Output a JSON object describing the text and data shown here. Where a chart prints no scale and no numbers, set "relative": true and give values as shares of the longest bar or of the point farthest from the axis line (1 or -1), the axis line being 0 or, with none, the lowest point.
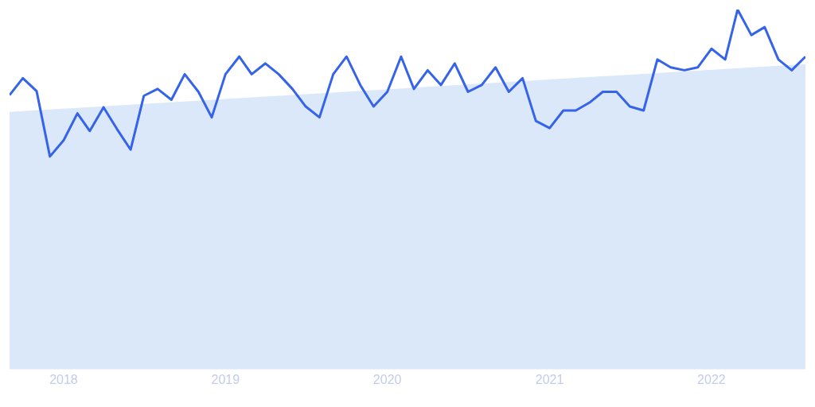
{
  "chart_data": {
    "type": "line",
    "relative": true,
    "x": [
      "2017-09",
      "2017-10",
      "2017-11",
      "2017-12",
      "2018-01",
      "2018-02",
      "2018-03",
      "2018-04",
      "2018-05",
      "2018-06",
      "2018-07",
      "2018-08",
      "2018-09",
      "2018-10",
      "2018-11",
      "2018-12",
      "2019-01",
      "2019-02",
      "2019-03",
      "2019-04",
      "2019-05",
      "2019-06",
      "2019-07",
      "2019-08",
      "2019-09",
      "2019-10",
      "2019-11",
      "2019-12",
      "2020-01",
      "2020-02",
      "2020-03",
      "2020-04",
      "2020-05",
      "2020-06",
      "2020-07",
      "2020-08",
      "2020-09",
      "2020-10",
      "2020-11",
      "2020-12",
      "2021-01",
      "2021-02",
      "2021-03",
      "2021-04",
      "2021-05",
      "2021-06",
      "2021-07",
      "2021-08",
      "2021-09",
      "2021-10",
      "2021-11",
      "2021-12",
      "2022-01",
      "2022-02",
      "2022-03",
      "2022-04",
      "2022-05",
      "2022-06",
      "2022-07",
      "2022-08"
    ],
    "xlim": [
      "2017-09",
      "2022-08"
    ],
    "xticks": [
      {
        "value": "2018-01",
        "label": "2018"
      },
      {
        "value": "2019-01",
        "label": "2019"
      },
      {
        "value": "2020-01",
        "label": "2020"
      },
      {
        "value": "2021-01",
        "label": "2021"
      },
      {
        "value": "2022-01",
        "label": "2022"
      }
    ],
    "series": [
      {
        "type": "area",
        "color": "#d6e6fa",
        "x": [
          "2017-09",
          "2022-08"
        ],
        "values": [
          0.715,
          0.848
        ]
      },
      {
        "color": "#3563e9",
        "values": [
          0.762,
          0.809,
          0.773,
          0.591,
          0.636,
          0.711,
          0.662,
          0.728,
          0.668,
          0.61,
          0.76,
          0.779,
          0.749,
          0.82,
          0.771,
          0.7,
          0.82,
          0.869,
          0.82,
          0.85,
          0.82,
          0.779,
          0.73,
          0.7,
          0.82,
          0.869,
          0.79,
          0.73,
          0.771,
          0.869,
          0.779,
          0.831,
          0.79,
          0.85,
          0.771,
          0.79,
          0.839,
          0.771,
          0.809,
          0.69,
          0.67,
          0.719,
          0.719,
          0.741,
          0.771,
          0.771,
          0.73,
          0.719,
          0.861,
          0.839,
          0.831,
          0.839,
          0.891,
          0.861,
          1,
          0.929,
          0.951,
          0.861,
          0.831,
          0.869
        ]
      }
    ],
    "marker": "none",
    "line_style": "solid",
    "legend": false
  }
}
